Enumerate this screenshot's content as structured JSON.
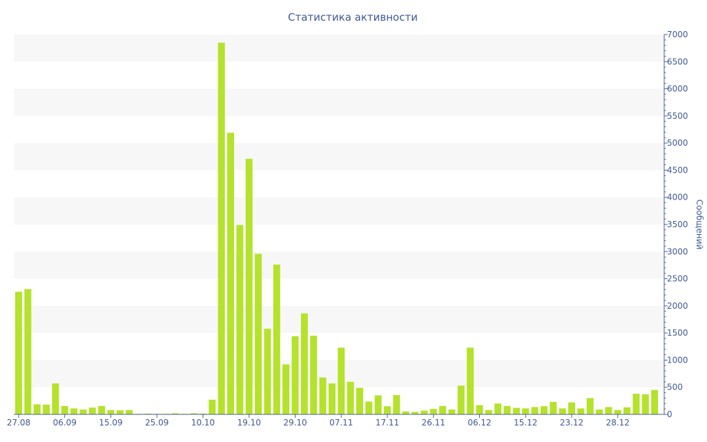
{
  "chart_data": {
    "type": "bar",
    "title": "Статистика активности",
    "ylabel": "Сообщений",
    "xlabel": "",
    "ylim": [
      0,
      7000
    ],
    "y_ticks": [
      0,
      500,
      1000,
      1500,
      2000,
      2500,
      3000,
      3500,
      4000,
      4500,
      5000,
      5500,
      6000,
      6500,
      7000
    ],
    "y_axis_side": "right",
    "grid": "alternating horizontal bands",
    "x_tick_labels": [
      {
        "label": "27.08",
        "index": 0
      },
      {
        "label": "06.09",
        "index": 5
      },
      {
        "label": "15.09",
        "index": 10
      },
      {
        "label": "25.09",
        "index": 15
      },
      {
        "label": "10.10",
        "index": 20
      },
      {
        "label": "19.10",
        "index": 25
      },
      {
        "label": "29.10",
        "index": 30
      },
      {
        "label": "07.11",
        "index": 35
      },
      {
        "label": "17.11",
        "index": 40
      },
      {
        "label": "26.11",
        "index": 45
      },
      {
        "label": "06.12",
        "index": 50
      },
      {
        "label": "15.12",
        "index": 55
      },
      {
        "label": "23.12",
        "index": 60
      },
      {
        "label": "28.12",
        "index": 65
      }
    ],
    "values": [
      2260,
      2310,
      185,
      180,
      570,
      155,
      110,
      90,
      125,
      155,
      80,
      75,
      80,
      10,
      15,
      10,
      10,
      20,
      10,
      20,
      15,
      270,
      6850,
      5190,
      3490,
      4710,
      2960,
      1580,
      2760,
      920,
      1440,
      1860,
      1450,
      680,
      570,
      1230,
      600,
      490,
      235,
      350,
      150,
      355,
      55,
      45,
      70,
      100,
      155,
      90,
      530,
      1230,
      170,
      80,
      200,
      155,
      120,
      110,
      135,
      150,
      230,
      110,
      220,
      110,
      300,
      90,
      135,
      80,
      130,
      380,
      370,
      450
    ],
    "colors": {
      "bar": "#b5e22c",
      "text": "#3e5893",
      "band": "#f7f7f7",
      "axis": "#4a5f93"
    }
  }
}
